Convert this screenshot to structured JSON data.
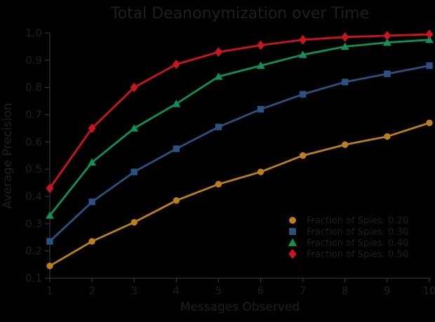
{
  "figure": {
    "background": "#000000",
    "text_color": "#1f1f1f",
    "axis_color": "#303030"
  },
  "chart_data": {
    "type": "line",
    "title": "Total Deanonymization over Time",
    "xlabel": "Messages Observed",
    "ylabel": "Average Precision",
    "grid": false,
    "legend_position": "lower-right-inside",
    "xlim": [
      1,
      10
    ],
    "ylim": [
      0.1,
      1.0
    ],
    "x_ticks": [
      1,
      2,
      3,
      4,
      5,
      6,
      7,
      8,
      9,
      10
    ],
    "y_ticks": [
      0.1,
      0.2,
      0.3,
      0.4,
      0.5,
      0.6,
      0.7,
      0.8,
      0.9,
      1.0
    ],
    "x": [
      1,
      2,
      3,
      4,
      5,
      6,
      7,
      8,
      9,
      10
    ],
    "series": [
      {
        "name": "Fraction of Spies: 0.20",
        "marker": "circle",
        "color": "#bd7f1e",
        "values": [
          0.145,
          0.235,
          0.305,
          0.385,
          0.445,
          0.49,
          0.55,
          0.59,
          0.62,
          0.67
        ]
      },
      {
        "name": "Fraction of Spies: 0.30",
        "marker": "square",
        "color": "#2c5080",
        "values": [
          0.235,
          0.38,
          0.49,
          0.575,
          0.655,
          0.72,
          0.775,
          0.82,
          0.85,
          0.88
        ]
      },
      {
        "name": "Fraction of Spies: 0.40",
        "marker": "triangle",
        "color": "#0f9158",
        "values": [
          0.33,
          0.525,
          0.65,
          0.74,
          0.84,
          0.88,
          0.92,
          0.95,
          0.965,
          0.975
        ]
      },
      {
        "name": "Fraction of Spies: 0.50",
        "marker": "diamond",
        "color": "#cc1420",
        "values": [
          0.43,
          0.65,
          0.8,
          0.885,
          0.93,
          0.955,
          0.975,
          0.985,
          0.99,
          0.995
        ]
      }
    ]
  }
}
